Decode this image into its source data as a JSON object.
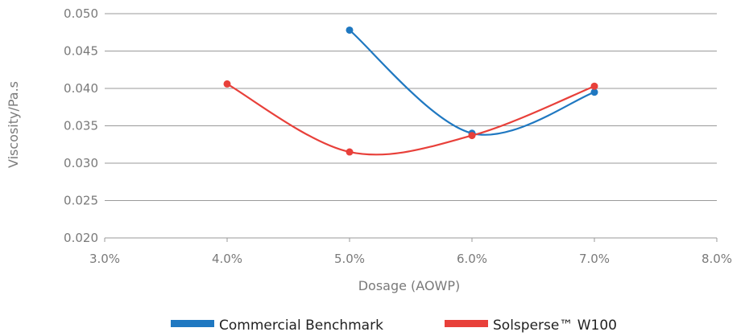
{
  "chart_data": {
    "type": "line",
    "xlabel": "Dosage (AOWP)",
    "ylabel": "Viscosity/Pa.s",
    "xlim": [
      3.0,
      8.0
    ],
    "ylim": [
      0.02,
      0.05
    ],
    "x_ticks": [
      "3.0%",
      "4.0%",
      "5.0%",
      "6.0%",
      "7.0%",
      "8.0%"
    ],
    "y_ticks": [
      "0.020",
      "0.025",
      "0.030",
      "0.035",
      "0.040",
      "0.045",
      "0.050"
    ],
    "grid": true,
    "smooth": true,
    "legend_position": "bottom",
    "series": [
      {
        "name": "Commercial Benchmark",
        "color": "#1f78c1",
        "x": [
          5.0,
          6.0,
          7.0
        ],
        "y": [
          0.0478,
          0.034,
          0.0395
        ]
      },
      {
        "name": "Solsperse™ W100",
        "color": "#e8403a",
        "x": [
          4.0,
          5.0,
          6.0,
          7.0
        ],
        "y": [
          0.0406,
          0.0315,
          0.0337,
          0.0403
        ]
      }
    ]
  }
}
